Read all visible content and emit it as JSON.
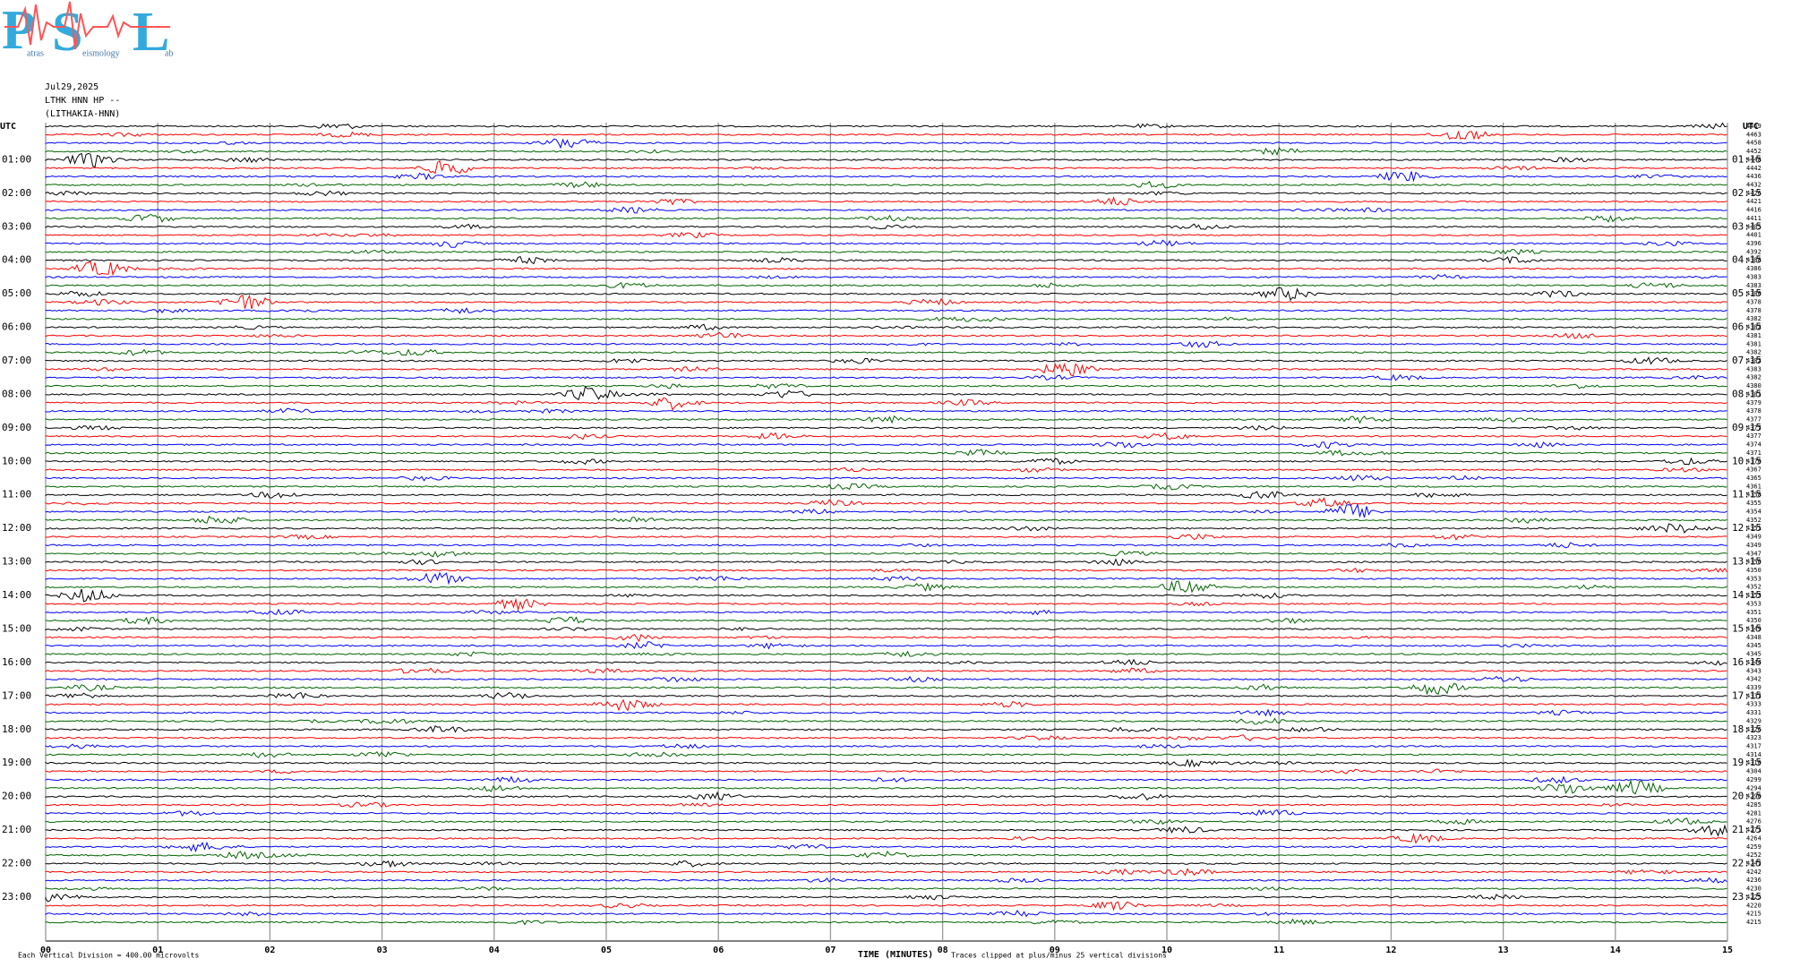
{
  "logo": {
    "big": [
      "P",
      "S",
      "L"
    ],
    "small": [
      "atras",
      "eismology",
      "ab"
    ]
  },
  "header": [
    "Jul29,2025",
    "LTHK HNN HP --",
    "(LITHAKIA-HNN)"
  ],
  "chart_data": {
    "type": "helicorder",
    "left_corner": "UTC",
    "right_corner": "UTC",
    "left_labels": [
      "01:00",
      "02:00",
      "03:00",
      "04:00",
      "05:00",
      "06:00",
      "07:00",
      "08:00",
      "09:00",
      "10:00",
      "11:00",
      "12:00",
      "13:00",
      "14:00",
      "15:00",
      "16:00",
      "17:00",
      "18:00",
      "19:00",
      "20:00",
      "21:00",
      "22:00",
      "23:00"
    ],
    "right_labels": [
      "01:15",
      "02:15",
      "03:15",
      "04:15",
      "05:15",
      "06:15",
      "07:15",
      "08:15",
      "09:15",
      "10:15",
      "11:15",
      "12:15",
      "13:15",
      "14:15",
      "15:15",
      "16:15",
      "17:15",
      "18:15",
      "19:15",
      "20:15",
      "21:15",
      "22:15",
      "23:15"
    ],
    "trace_values": [
      4469,
      4463,
      4458,
      4452,
      4448,
      4442,
      4436,
      4432,
      4426,
      4421,
      4416,
      4411,
      4405,
      4401,
      4396,
      4392,
      4388,
      4386,
      4383,
      4383,
      4380,
      4378,
      4378,
      4382,
      4382,
      4381,
      4381,
      4382,
      4382,
      4383,
      4382,
      4380,
      4381,
      4379,
      4378,
      4377,
      4377,
      4377,
      4374,
      4371,
      4370,
      4367,
      4365,
      4361,
      4358,
      4355,
      4354,
      4352,
      4351,
      4349,
      4349,
      4347,
      4350,
      4350,
      4353,
      4352,
      4353,
      4353,
      4351,
      4350,
      4349,
      4348,
      4345,
      4345,
      4344,
      4343,
      4342,
      4339,
      4337,
      4333,
      4331,
      4329,
      4326,
      4323,
      4317,
      4314,
      4310,
      4304,
      4299,
      4294,
      4290,
      4285,
      4281,
      4276,
      4271,
      4264,
      4259,
      4252,
      4247,
      4242,
      4236,
      4230,
      4225,
      4220,
      4215,
      4215
    ],
    "trace_colors": [
      "#000000",
      "#ff0000",
      "#0000ff",
      "#006400"
    ],
    "xlim": [
      0,
      15
    ],
    "xticks": [
      {
        "value": 0,
        "label": "00"
      },
      {
        "value": 1,
        "label": "01"
      },
      {
        "value": 2,
        "label": "02"
      },
      {
        "value": 3,
        "label": "03"
      },
      {
        "value": 4,
        "label": "04"
      },
      {
        "value": 5,
        "label": "05"
      },
      {
        "value": 6,
        "label": "06"
      },
      {
        "value": 7,
        "label": "07"
      },
      {
        "value": 8,
        "label": "08"
      },
      {
        "value": 9,
        "label": "09"
      },
      10,
      11,
      12,
      13,
      14,
      15
    ],
    "xlabel": "TIME (MINUTES)",
    "footer_left": "Each Vertical Division =  400.00 microvolts",
    "footer_right": "Traces clipped at plus/minus 25 vertical divisions",
    "grid": true
  }
}
